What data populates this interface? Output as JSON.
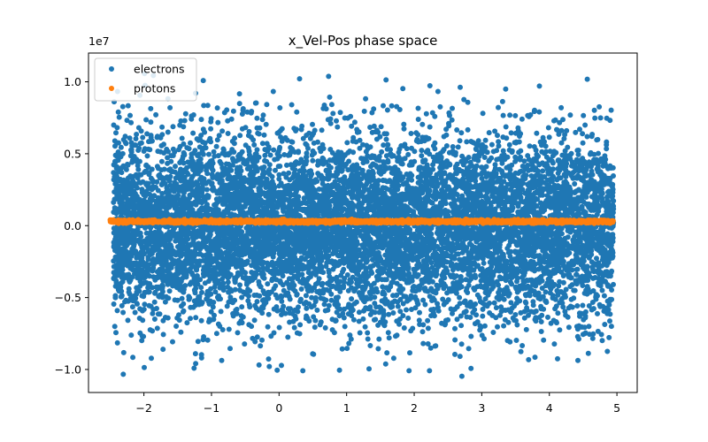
{
  "chart_data": {
    "type": "scatter",
    "title": "x_Vel-Pos phase space",
    "xlabel": "",
    "ylabel": "",
    "y_offset_label": "1e7",
    "xlim": [
      -2.82,
      5.3
    ],
    "ylim": [
      -11600000.0,
      12000000.0
    ],
    "x_ticks": [
      -2,
      -1,
      0,
      1,
      2,
      3,
      4,
      5
    ],
    "x_tick_labels": [
      "−2",
      "−1",
      "0",
      "1",
      "2",
      "3",
      "4",
      "5"
    ],
    "y_ticks": [
      -10000000.0,
      -5000000.0,
      0,
      5000000.0,
      10000000.0
    ],
    "y_tick_labels": [
      "−1.0",
      "−0.5",
      "0.0",
      "0.5",
      "1.0"
    ],
    "grid": false,
    "legend_position": "top-left",
    "series": [
      {
        "name": "electrons",
        "color": "#1f77b4",
        "distribution": {
          "x_range": [
            -2.45,
            4.95
          ],
          "y_mean": 0,
          "y_std": 3200000.0,
          "y_extent": [
            -10500000.0,
            10900000.0
          ],
          "count": 9000
        }
      },
      {
        "name": "protons",
        "color": "#ff7f0e",
        "distribution": {
          "x_range": [
            -2.5,
            4.95
          ],
          "y_mean": 290000.0,
          "y_std": 50000.0,
          "y_extent": [
            150000.0,
            450000.0
          ],
          "count": 2500
        }
      }
    ]
  }
}
